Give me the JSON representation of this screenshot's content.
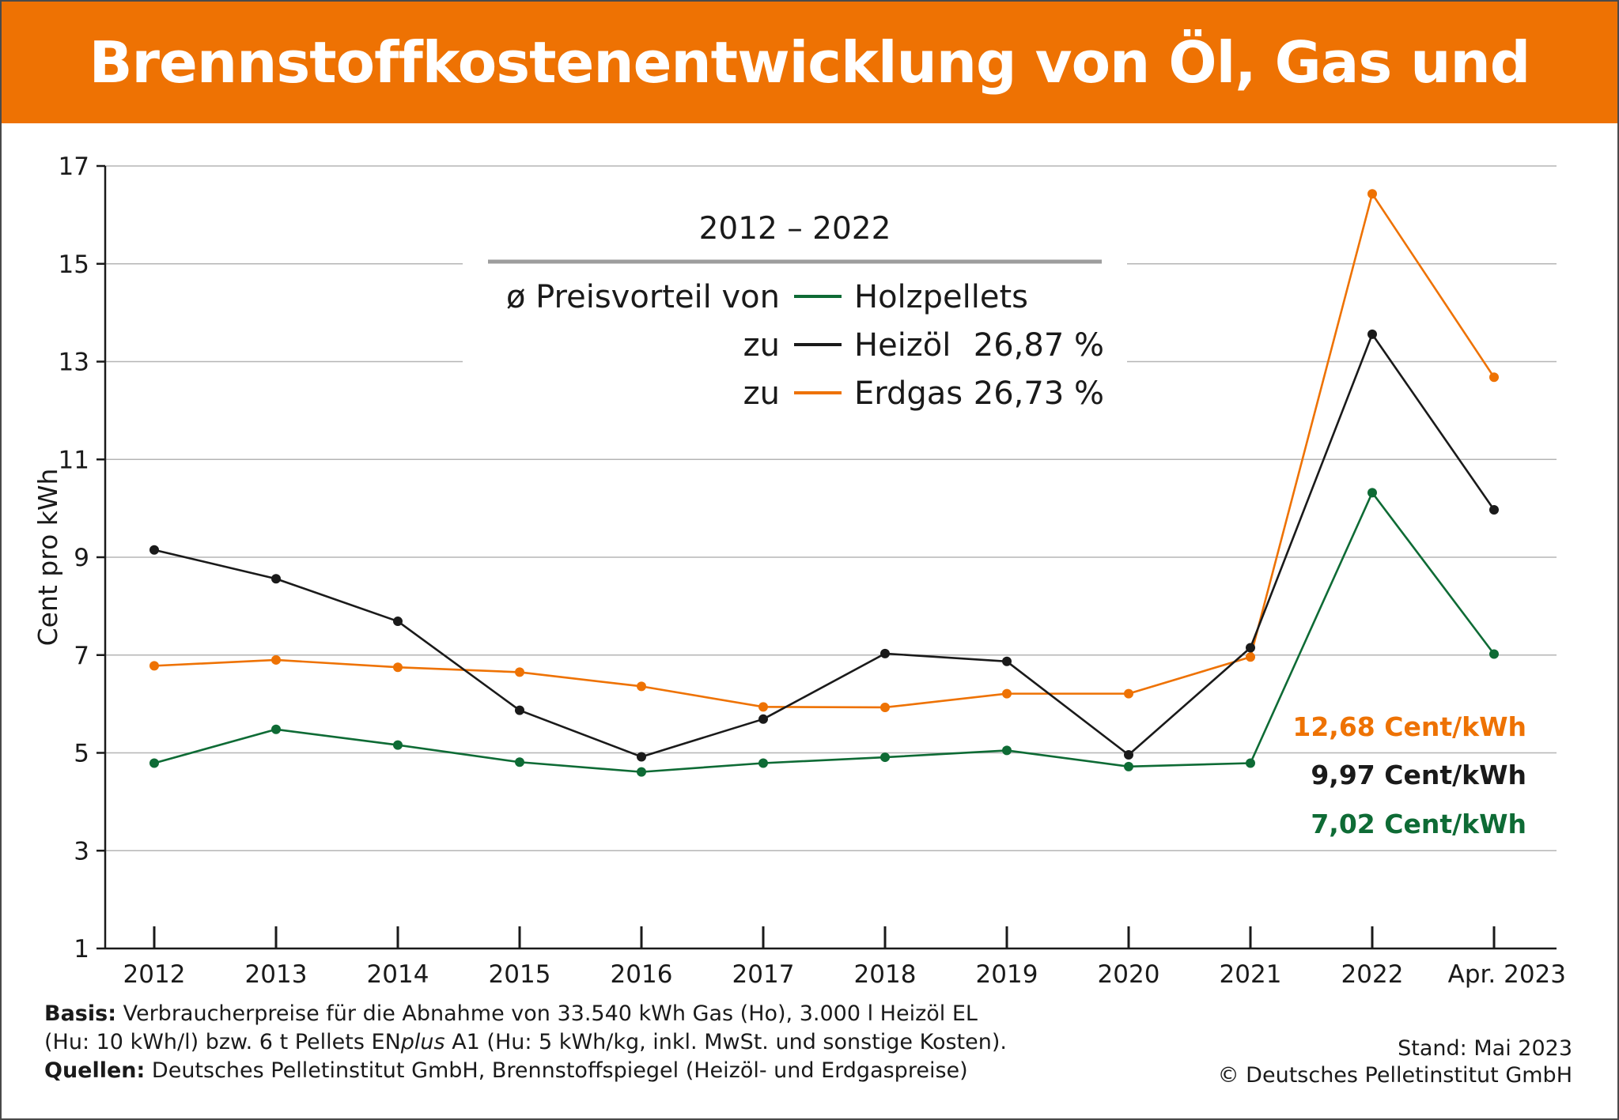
{
  "header": {
    "title": "Brennstoffkostenentwicklung von Öl, Gas und Pellets"
  },
  "colors": {
    "orange": "#ee7203",
    "black": "#1a1a1a",
    "green": "#0e6b35",
    "grid": "#b5b5b5",
    "legend_rule": "#9d9d9d"
  },
  "legend": {
    "period": "2012 – 2022",
    "intro": "ø Preisvorteil von",
    "rows": [
      {
        "prefix": "",
        "label": "Holzpellets",
        "value": "",
        "color": "green"
      },
      {
        "prefix": "zu",
        "label": "Heizöl",
        "value": "26,87 %",
        "color": "black"
      },
      {
        "prefix": "zu",
        "label": "Erdgas",
        "value": "26,73 %",
        "color": "orange"
      }
    ]
  },
  "end_labels": [
    {
      "text": "12,68 Cent/kWh",
      "color": "orange"
    },
    {
      "text": "9,97 Cent/kWh",
      "color": "black"
    },
    {
      "text": "7,02 Cent/kWh",
      "color": "green"
    }
  ],
  "chart_data": {
    "type": "line",
    "title": "Brennstoffkostenentwicklung von Öl, Gas und Pellets",
    "xlabel": "",
    "ylabel": "Cent pro kWh",
    "categories": [
      "2012",
      "2013",
      "2014",
      "2015",
      "2016",
      "2017",
      "2018",
      "2019",
      "2020",
      "2021",
      "2022",
      "Apr. 2023"
    ],
    "ylim": [
      1,
      17
    ],
    "yticks": [
      1,
      3,
      5,
      7,
      9,
      11,
      13,
      15,
      17
    ],
    "grid": true,
    "series": [
      {
        "name": "Erdgas",
        "color": "orange",
        "values": [
          6.78,
          6.9,
          6.75,
          6.65,
          6.36,
          5.94,
          5.93,
          6.21,
          6.21,
          6.96,
          16.43,
          12.68
        ]
      },
      {
        "name": "Heizöl",
        "color": "black",
        "values": [
          9.15,
          8.56,
          7.69,
          5.87,
          4.92,
          5.69,
          7.03,
          6.87,
          4.96,
          7.15,
          13.56,
          9.97
        ]
      },
      {
        "name": "Holzpellets",
        "color": "green",
        "values": [
          4.79,
          5.48,
          5.16,
          4.81,
          4.61,
          4.79,
          4.91,
          5.05,
          4.72,
          4.79,
          10.32,
          7.02
        ]
      }
    ]
  },
  "footer": {
    "basis_label": "Basis:",
    "basis_text_1": "Verbraucherpreise für die Abnahme von 33.540 kWh Gas (Ho), 3.000 l Heizöl EL",
    "basis_text_2a": "(Hu: 10 kWh/l) bzw. 6 t Pellets EN",
    "basis_text_2b": "plus",
    "basis_text_2c": " A1 (Hu: 5 kWh/kg, inkl. MwSt. und sonstige Kosten).",
    "sources_label": "Quellen:",
    "sources_text": "Deutsches Pelletinstitut GmbH, Brennstoffspiegel (Heizöl- und Erdgaspreise)",
    "stand": "Stand: Mai 2023",
    "copyright": "© Deutsches Pelletinstitut GmbH"
  }
}
